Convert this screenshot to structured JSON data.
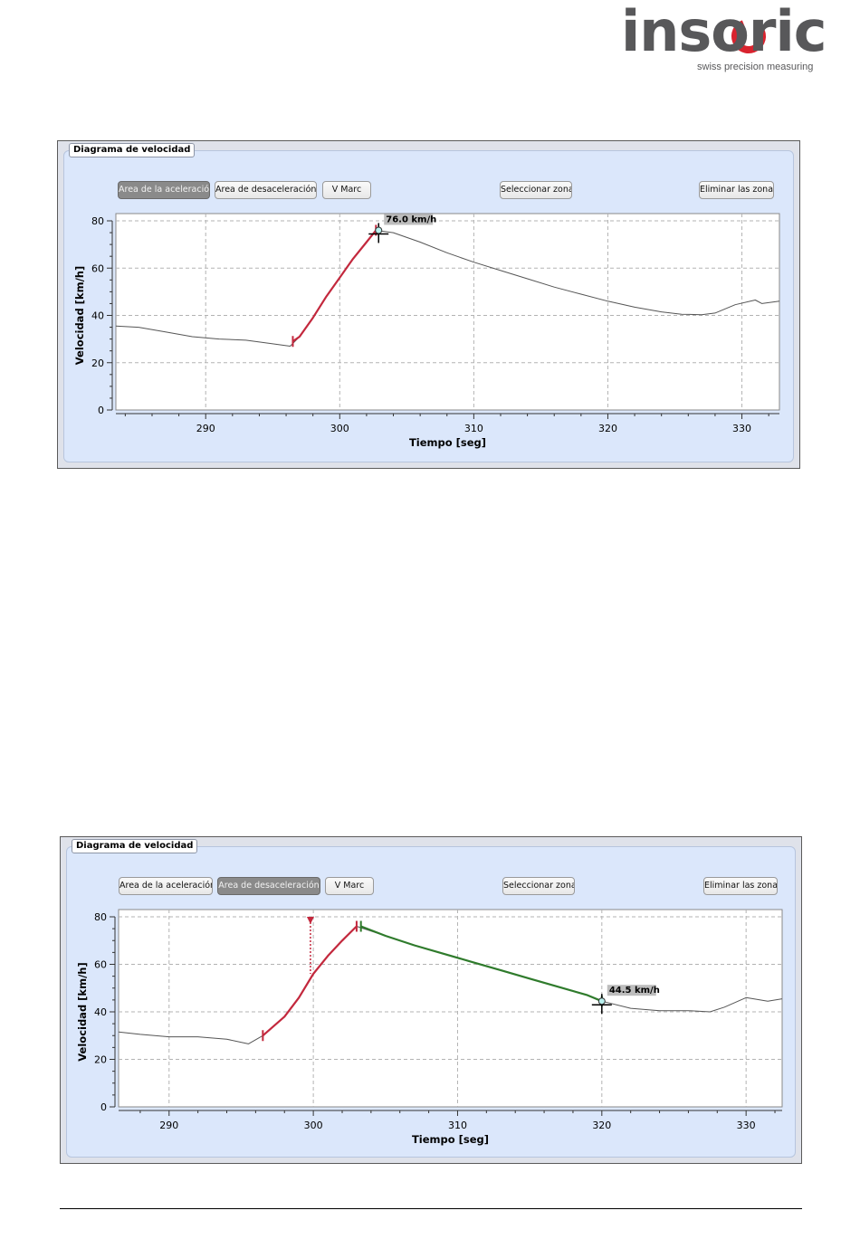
{
  "logo": {
    "wordmark": "insoric",
    "tagline": "swiss precision measuring",
    "colors": {
      "text": "#58585a",
      "accent": "#d9232e"
    }
  },
  "panels": [
    {
      "title": "Diagrama de velocidad",
      "buttons": {
        "accel": "Area de la aceleración",
        "decel": "Area de desaceleración",
        "vmarc": "V Marc",
        "select": "Seleccionar zona",
        "delete": "Eliminar las zonas"
      },
      "active_button": "accel",
      "chart_data": {
        "type": "line",
        "xlabel": "Tiempo [seg]",
        "ylabel": "Velocidad [km/h]",
        "xlim": [
          283.3,
          332.8
        ],
        "ylim": [
          0,
          80
        ],
        "x_ticks": [
          290,
          300,
          310,
          320,
          330
        ],
        "y_ticks": [
          0,
          20,
          40,
          60,
          80
        ],
        "grid": true,
        "series": [
          {
            "color": "#555555",
            "points": [
              [
                283.3,
                35.5
              ],
              [
                285,
                35
              ],
              [
                287,
                33
              ],
              [
                289,
                31
              ],
              [
                291,
                30
              ],
              [
                293,
                29.5
              ],
              [
                295,
                28
              ],
              [
                296.3,
                27
              ],
              [
                297,
                31
              ],
              [
                298,
                39
              ],
              [
                299,
                48
              ],
              [
                300,
                56
              ],
              [
                301,
                64
              ],
              [
                302,
                71
              ],
              [
                302.7,
                76
              ],
              [
                304,
                75
              ],
              [
                306,
                71
              ],
              [
                308,
                66.5
              ],
              [
                310,
                62.5
              ],
              [
                312,
                59
              ],
              [
                314,
                55.5
              ],
              [
                316,
                52
              ],
              [
                318,
                49
              ],
              [
                320,
                46
              ],
              [
                322,
                43.5
              ],
              [
                324,
                41.5
              ],
              [
                325.5,
                40.5
              ],
              [
                327,
                40.3
              ],
              [
                328,
                41
              ],
              [
                329.5,
                44.5
              ],
              [
                331,
                46.5
              ],
              [
                331.5,
                45
              ],
              [
                332.8,
                46
              ]
            ]
          },
          {
            "color": "#c3283d",
            "points": [
              [
                296.5,
                29
              ],
              [
                297,
                31
              ],
              [
                298,
                39
              ],
              [
                299,
                48
              ],
              [
                300,
                56
              ],
              [
                301,
                64
              ],
              [
                302,
                71
              ],
              [
                302.7,
                76
              ]
            ]
          }
        ],
        "annotations": [
          {
            "x": 302.9,
            "y": 76.0,
            "label": "76.0 km/h"
          }
        ]
      }
    },
    {
      "title": "Diagrama de velocidad",
      "buttons": {
        "accel": "Area de la aceleración",
        "decel": "Area de desaceleración",
        "vmarc": "V Marc",
        "select": "Seleccionar zona",
        "delete": "Eliminar las zonas"
      },
      "active_button": "decel",
      "chart_data": {
        "type": "line",
        "xlabel": "Tiempo [seg]",
        "ylabel": "Velocidad [km/h]",
        "xlim": [
          286.5,
          332.5
        ],
        "ylim": [
          0,
          80
        ],
        "x_ticks": [
          290,
          300,
          310,
          320,
          330
        ],
        "y_ticks": [
          0,
          20,
          40,
          60,
          80
        ],
        "grid": true,
        "series": [
          {
            "color": "#555555",
            "points": [
              [
                286.5,
                31.5
              ],
              [
                288,
                30.5
              ],
              [
                290,
                29.5
              ],
              [
                292,
                29.5
              ],
              [
                294,
                28.5
              ],
              [
                295.5,
                26.5
              ],
              [
                296.5,
                30
              ],
              [
                298,
                38
              ],
              [
                299,
                46
              ],
              [
                300,
                56
              ],
              [
                301,
                63.5
              ],
              [
                302,
                70
              ],
              [
                303,
                76
              ],
              [
                305,
                72
              ],
              [
                307,
                68
              ],
              [
                309,
                64.5
              ],
              [
                311,
                61
              ],
              [
                313,
                57.5
              ],
              [
                315,
                54
              ],
              [
                317,
                50.5
              ],
              [
                319,
                47
              ],
              [
                320,
                44.5
              ],
              [
                322,
                41.5
              ],
              [
                324,
                40.5
              ],
              [
                326,
                40.5
              ],
              [
                327.5,
                40
              ],
              [
                328.5,
                42
              ],
              [
                330,
                46
              ],
              [
                331.5,
                44.5
              ],
              [
                332.5,
                45.5
              ]
            ]
          },
          {
            "color": "#c3283d",
            "points": [
              [
                296.5,
                30
              ],
              [
                298,
                38
              ],
              [
                299,
                46
              ],
              [
                300,
                56
              ],
              [
                301,
                63.5
              ],
              [
                302,
                70
              ],
              [
                303,
                76
              ]
            ]
          },
          {
            "color": "#2f7b2c",
            "points": [
              [
                303.3,
                76
              ],
              [
                305,
                72
              ],
              [
                307,
                68
              ],
              [
                309,
                64.5
              ],
              [
                311,
                61
              ],
              [
                313,
                57.5
              ],
              [
                315,
                54
              ],
              [
                317,
                50.5
              ],
              [
                319,
                47
              ],
              [
                320,
                44.5
              ]
            ]
          }
        ],
        "vmarc_x": 299.8,
        "annotations": [
          {
            "x": 320.0,
            "y": 44.5,
            "label": "44.5 km/h"
          }
        ]
      }
    }
  ]
}
